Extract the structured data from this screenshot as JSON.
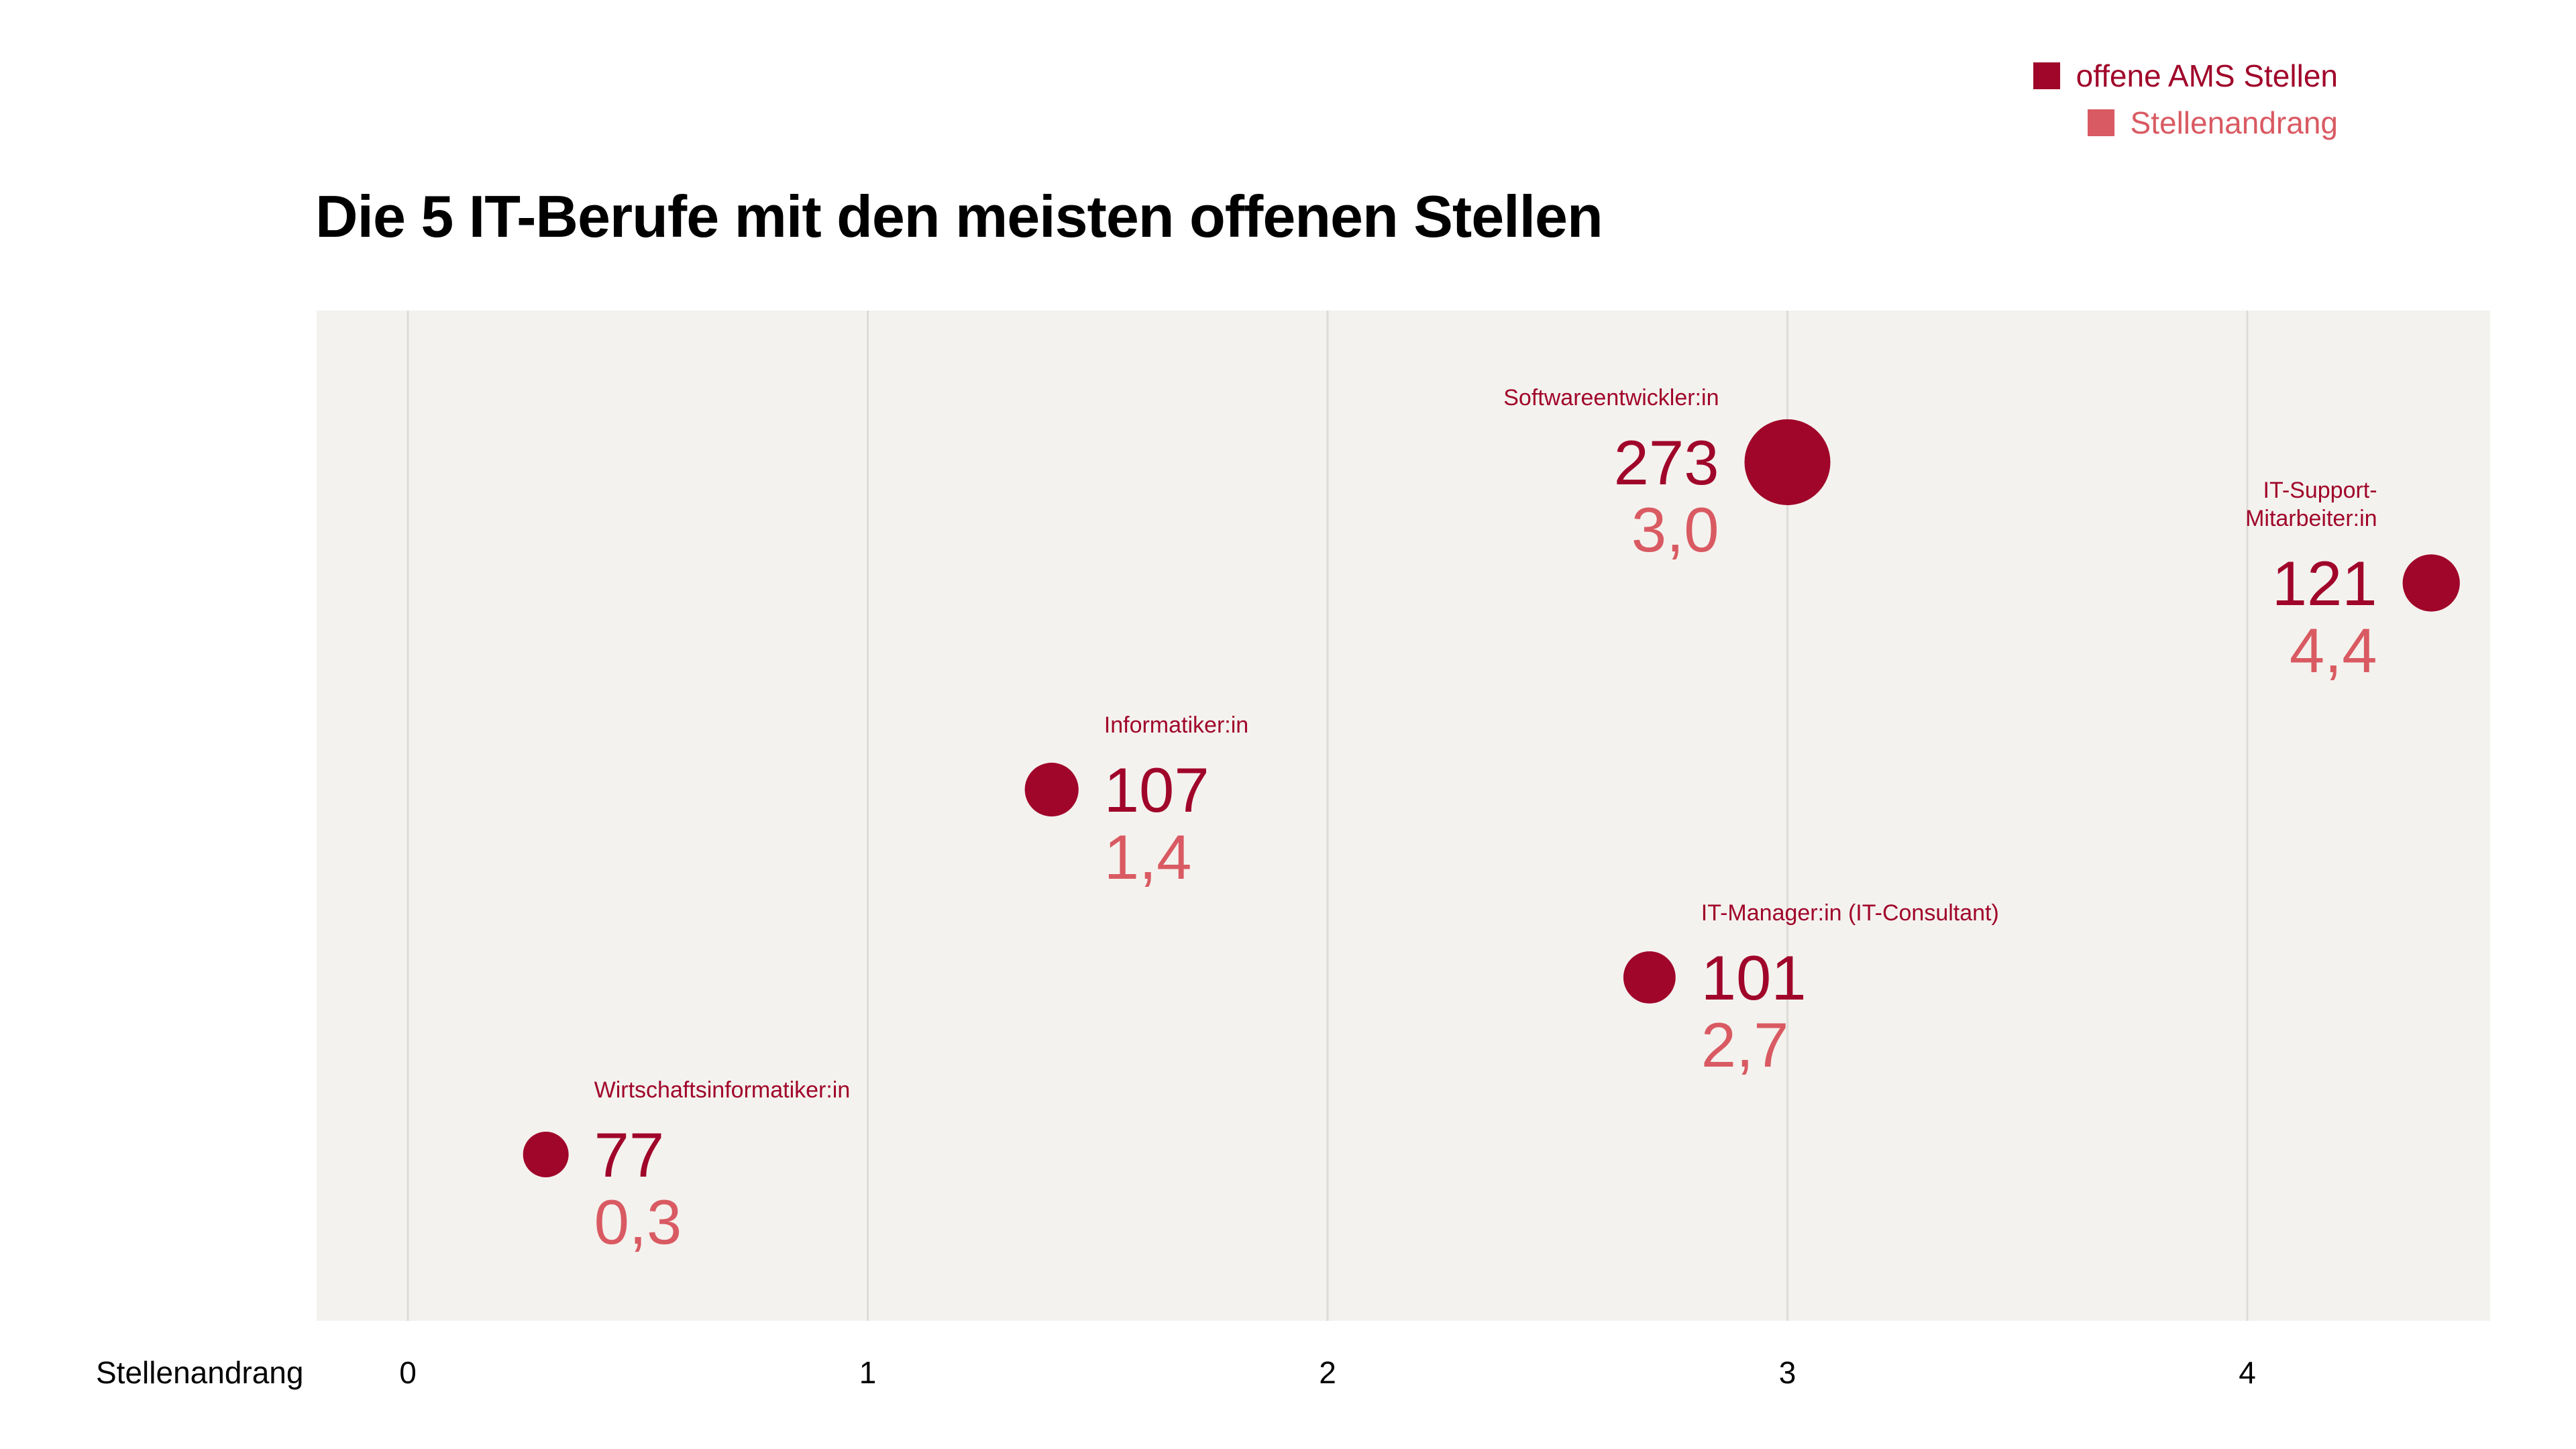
{
  "title": "Die 5 IT-Berufe mit den meisten offenen Stellen",
  "colors": {
    "primary": "#a0052a",
    "secondary": "#d95a62",
    "plot_background": "#f4f2ee",
    "gridline": "#dedcd8"
  },
  "legend": [
    {
      "label": "offene AMS Stellen",
      "color": "#a0052a"
    },
    {
      "label": "Stellenandrang",
      "color": "#d95a62"
    }
  ],
  "chart_data": {
    "type": "scatter",
    "title": "Die 5 IT-Berufe mit den meisten offenen Stellen",
    "xlabel": "Stellenandrang",
    "ylabel": "",
    "xlim": [
      -0.2,
      4.5
    ],
    "x_ticks": [
      0,
      1,
      2,
      3,
      4
    ],
    "x_tick_labels": [
      "0",
      "1",
      "2",
      "3",
      "4"
    ],
    "grid": "vertical",
    "legend_position": "top-right",
    "size_encoding": "offene AMS Stellen",
    "series": [
      {
        "name": "IT-Berufe",
        "points": [
          {
            "label": "Softwareentwickler:in",
            "label_lines": [
              "Softwareentwickler:in"
            ],
            "offene_stellen": 273,
            "stellenandrang": 3.0,
            "stellenandrang_text": "3,0",
            "label_side": "left"
          },
          {
            "label": "IT-Support-Mitarbeiter:in",
            "label_lines": [
              "IT-Support-",
              "Mitarbeiter:in"
            ],
            "offene_stellen": 121,
            "stellenandrang": 4.4,
            "stellenandrang_text": "4,4",
            "label_side": "left"
          },
          {
            "label": "Informatiker:in",
            "label_lines": [
              "Informatiker:in"
            ],
            "offene_stellen": 107,
            "stellenandrang": 1.4,
            "stellenandrang_text": "1,4",
            "label_side": "right"
          },
          {
            "label": "IT-Manager:in (IT-Consultant)",
            "label_lines": [
              "IT-Manager:in (IT-Consultant)"
            ],
            "offene_stellen": 101,
            "stellenandrang": 2.7,
            "stellenandrang_text": "2,7",
            "label_side": "right"
          },
          {
            "label": "Wirtschaftsinformatiker:in",
            "label_lines": [
              "Wirtschaftsinformatiker:in"
            ],
            "offene_stellen": 77,
            "stellenandrang": 0.3,
            "stellenandrang_text": "0,3",
            "label_side": "right"
          }
        ]
      }
    ]
  }
}
